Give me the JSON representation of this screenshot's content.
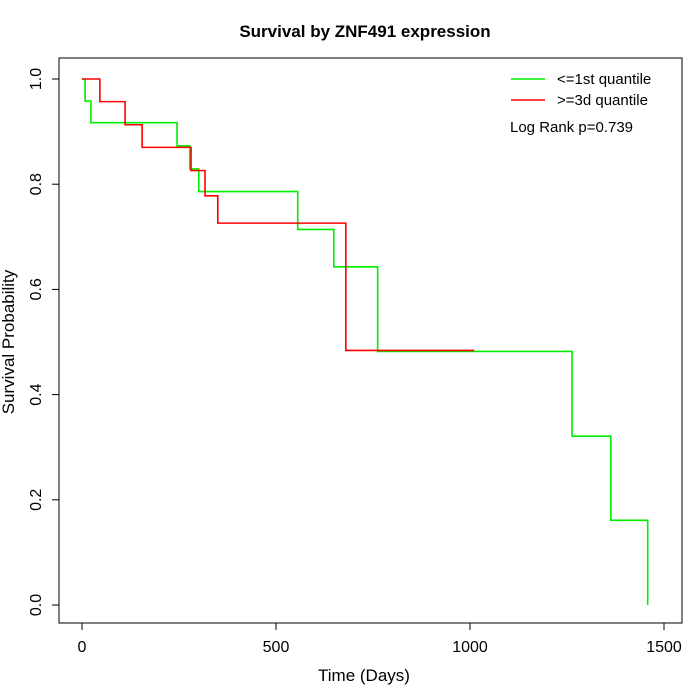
{
  "chart_data": {
    "type": "line",
    "step": true,
    "title": "Survival by ZNF491 expression",
    "xlabel": "Time (Days)",
    "ylabel": "Survival Probability",
    "xlim": [
      0,
      1500
    ],
    "ylim": [
      0,
      1
    ],
    "xticks": [
      0,
      500,
      1000,
      1500
    ],
    "yticks": [
      0.0,
      0.2,
      0.4,
      0.6,
      0.8,
      1.0
    ],
    "ytick_labels": [
      "0.0",
      "0.2",
      "0.4",
      "0.6",
      "0.8",
      "1.0"
    ],
    "grid": false,
    "legend_position": "top-right",
    "annotation": "Log Rank p=0.739",
    "series": [
      {
        "name": "<=1st quantile",
        "color": "#00ee00",
        "x": [
          0,
          8,
          23,
          245,
          278,
          301,
          556,
          649,
          762,
          1263,
          1363,
          1458
        ],
        "y": [
          1.0,
          0.958,
          0.917,
          0.873,
          0.829,
          0.786,
          0.714,
          0.643,
          0.482,
          0.321,
          0.161,
          0.0
        ]
      },
      {
        "name": ">=3d quantile",
        "color": "#ff0000",
        "x": [
          0,
          46,
          111,
          155,
          281,
          317,
          350,
          680,
          1011
        ],
        "y": [
          1.0,
          0.957,
          0.913,
          0.87,
          0.826,
          0.778,
          0.726,
          0.484,
          0.484
        ]
      }
    ]
  }
}
